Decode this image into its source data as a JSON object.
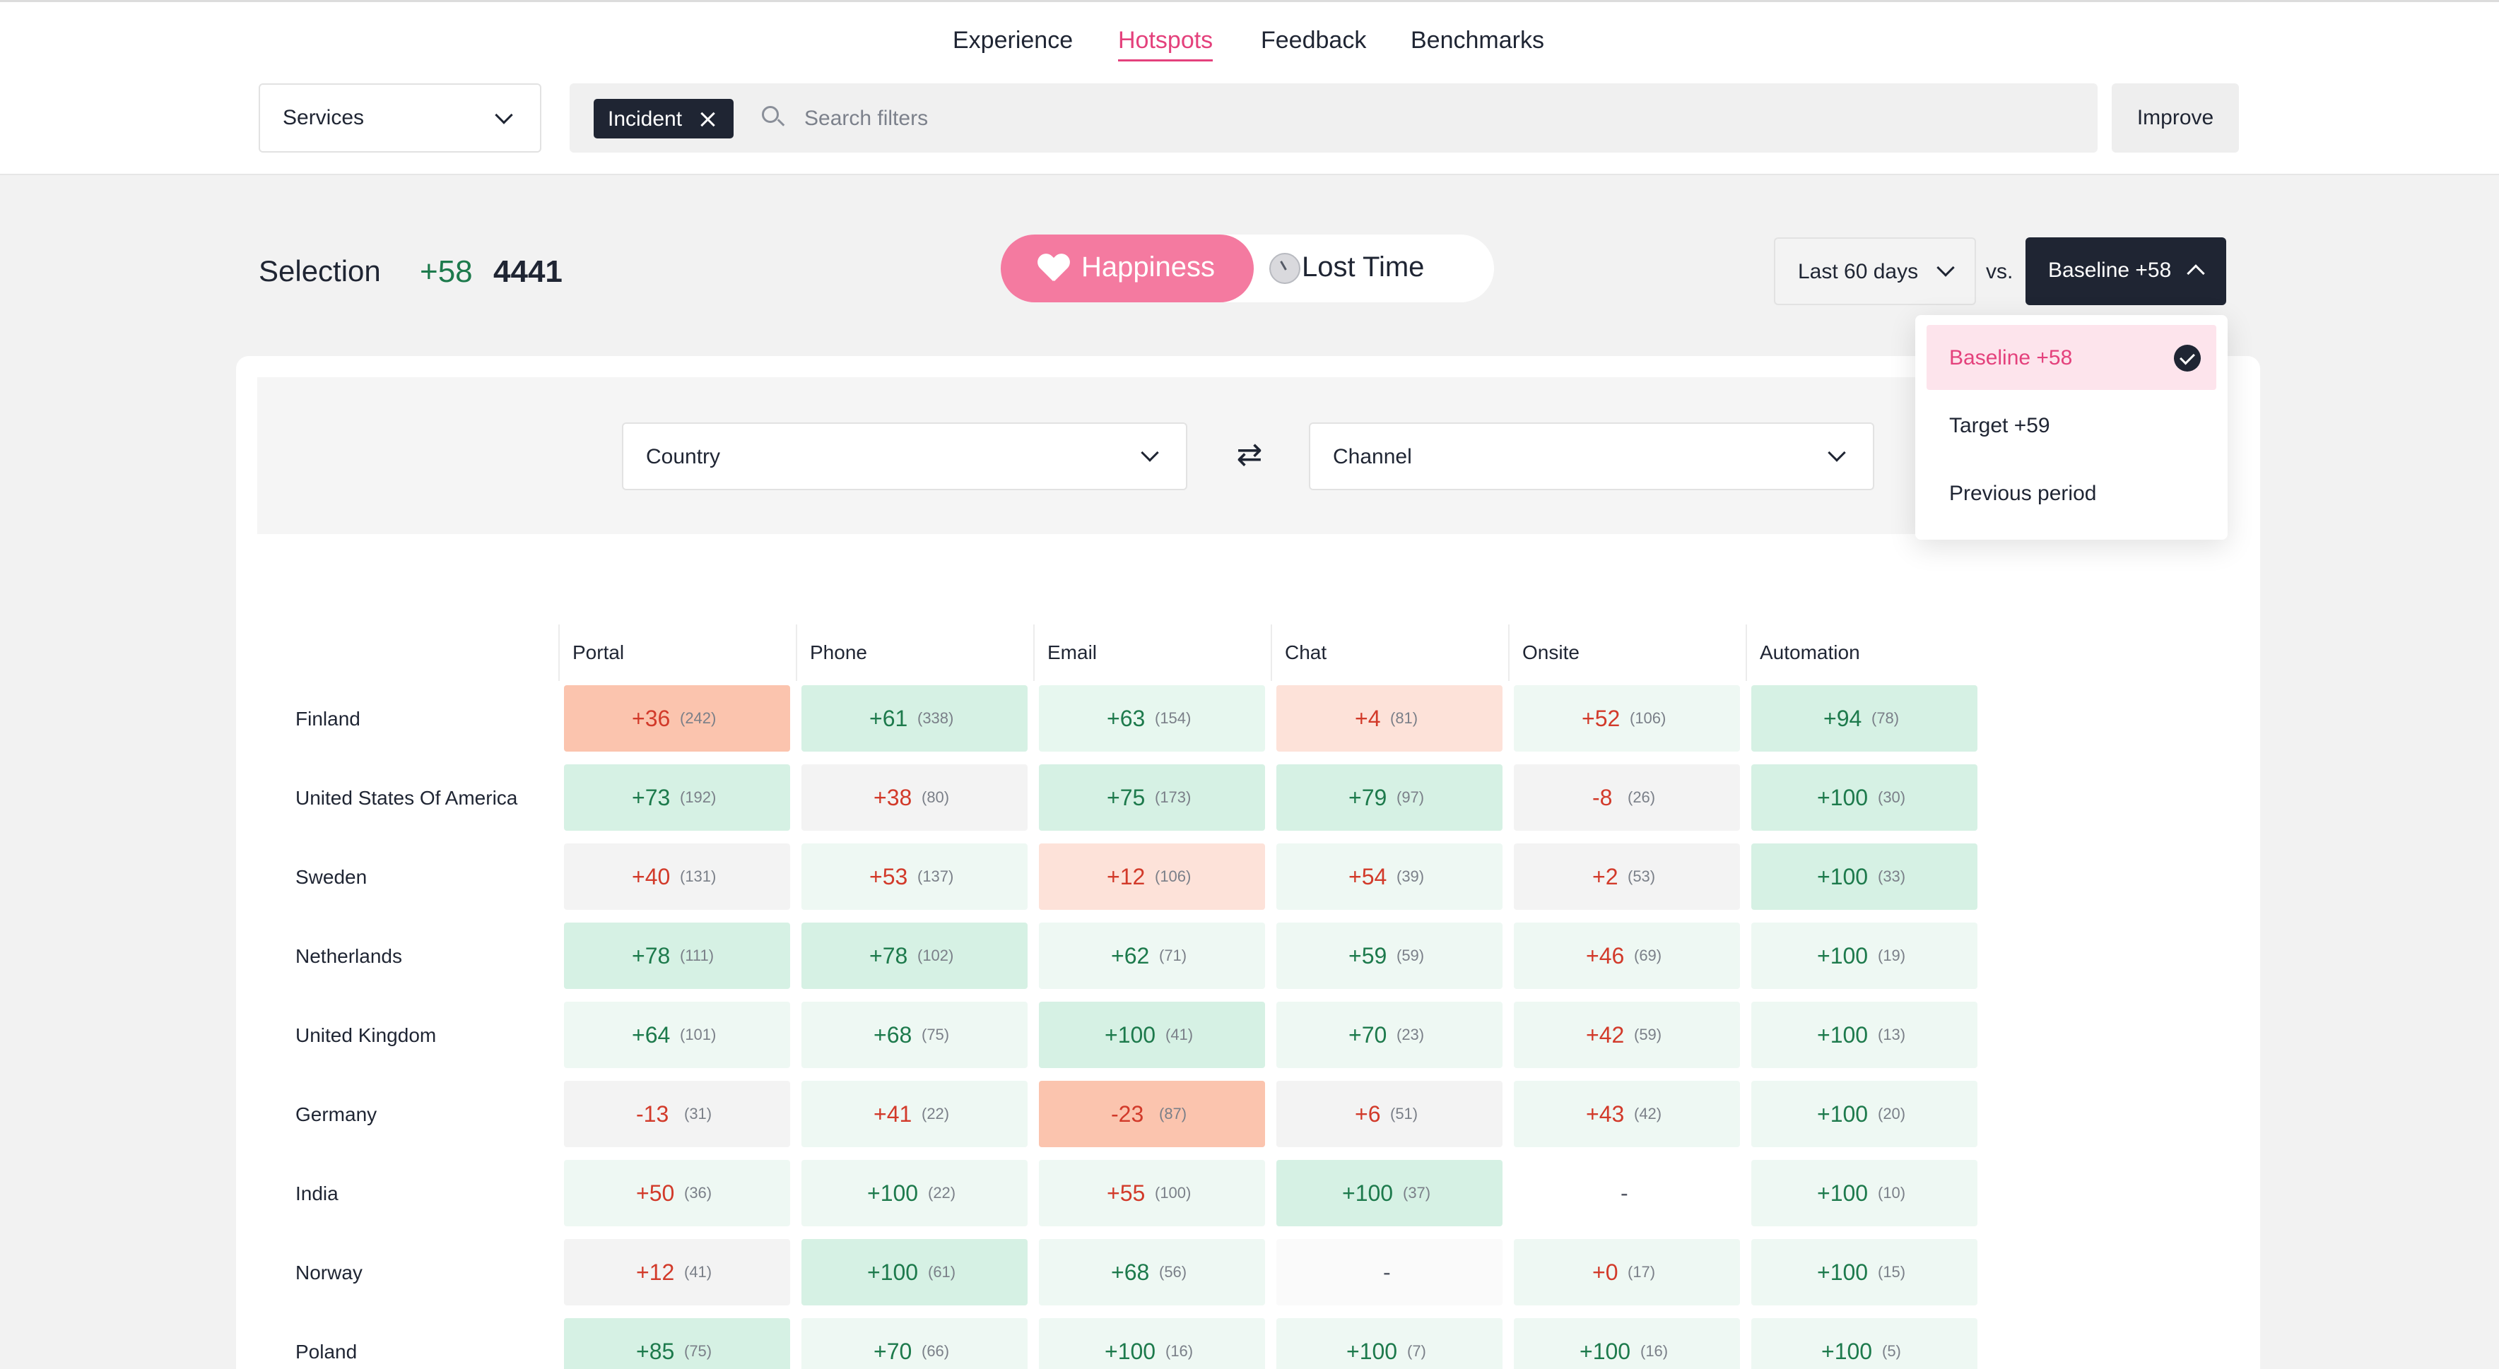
{
  "nav": {
    "items": [
      {
        "label": "Experience",
        "active": false
      },
      {
        "label": "Hotspots",
        "active": true
      },
      {
        "label": "Feedback",
        "active": false
      },
      {
        "label": "Benchmarks",
        "active": false
      }
    ]
  },
  "toolbar": {
    "service_select": "Services",
    "filter_chip": "Incident",
    "search_placeholder": "Search filters",
    "improve_label": "Improve"
  },
  "summary": {
    "label": "Selection",
    "delta": "+58",
    "count": "4441"
  },
  "metric_toggle": {
    "happiness_label": "Happiness",
    "lost_time_label": "Lost Time",
    "active": "Happiness"
  },
  "comparison": {
    "period": "Last 60 days",
    "vs_label": "vs.",
    "baseline": "Baseline +58",
    "options": [
      {
        "label": "Baseline +58",
        "selected": true
      },
      {
        "label": "Target +59",
        "selected": false
      },
      {
        "label": "Previous period",
        "selected": false
      }
    ]
  },
  "dimensions": {
    "rows_dim": "Country",
    "cols_dim": "Channel"
  },
  "colors": {
    "accent": "#e4417c",
    "toggle_active": "#f47aa0",
    "dark": "#1f2533",
    "positive_text": "#1d7a4c",
    "negative_text": "#d23a2a"
  },
  "table": {
    "columns": [
      "Portal",
      "Phone",
      "Email",
      "Chat",
      "Onsite",
      "Automation"
    ],
    "rows": [
      {
        "country": "Finland",
        "cells": [
          {
            "v": "+36",
            "n": "(242)",
            "c": "#fbc4ae",
            "t": "neg"
          },
          {
            "v": "+61",
            "n": "(338)",
            "c": "#d6f1e4",
            "t": "pos"
          },
          {
            "v": "+63",
            "n": "(154)",
            "c": "#e7f7ef",
            "t": "pos"
          },
          {
            "v": "+4",
            "n": "(81)",
            "c": "#fde2d9",
            "t": "neg"
          },
          {
            "v": "+52",
            "n": "(106)",
            "c": "#eef8f3",
            "t": "neg"
          },
          {
            "v": "+94",
            "n": "(78)",
            "c": "#d6f1e4",
            "t": "pos"
          }
        ]
      },
      {
        "country": "United States Of America",
        "cells": [
          {
            "v": "+73",
            "n": "(192)",
            "c": "#d6f1e4",
            "t": "pos"
          },
          {
            "v": "+38",
            "n": "(80)",
            "c": "#f3f3f3",
            "t": "neg"
          },
          {
            "v": "+75",
            "n": "(173)",
            "c": "#d6f1e4",
            "t": "pos"
          },
          {
            "v": "+79",
            "n": "(97)",
            "c": "#d6f1e4",
            "t": "pos"
          },
          {
            "v": "-8",
            "n": "(26)",
            "c": "#f3f3f3",
            "t": "neg"
          },
          {
            "v": "+100",
            "n": "(30)",
            "c": "#d6f1e4",
            "t": "pos"
          }
        ]
      },
      {
        "country": "Sweden",
        "cells": [
          {
            "v": "+40",
            "n": "(131)",
            "c": "#f3f3f3",
            "t": "neg"
          },
          {
            "v": "+53",
            "n": "(137)",
            "c": "#eef8f3",
            "t": "neg"
          },
          {
            "v": "+12",
            "n": "(106)",
            "c": "#fde2d9",
            "t": "neg"
          },
          {
            "v": "+54",
            "n": "(39)",
            "c": "#eef8f3",
            "t": "neg"
          },
          {
            "v": "+2",
            "n": "(53)",
            "c": "#f3f3f3",
            "t": "neg"
          },
          {
            "v": "+100",
            "n": "(33)",
            "c": "#d6f1e4",
            "t": "pos"
          }
        ]
      },
      {
        "country": "Netherlands",
        "cells": [
          {
            "v": "+78",
            "n": "(111)",
            "c": "#d6f1e4",
            "t": "pos"
          },
          {
            "v": "+78",
            "n": "(102)",
            "c": "#d6f1e4",
            "t": "pos"
          },
          {
            "v": "+62",
            "n": "(71)",
            "c": "#eef8f3",
            "t": "pos"
          },
          {
            "v": "+59",
            "n": "(59)",
            "c": "#eef8f3",
            "t": "pos"
          },
          {
            "v": "+46",
            "n": "(69)",
            "c": "#eef8f3",
            "t": "neg"
          },
          {
            "v": "+100",
            "n": "(19)",
            "c": "#eef8f3",
            "t": "pos"
          }
        ]
      },
      {
        "country": "United Kingdom",
        "cells": [
          {
            "v": "+64",
            "n": "(101)",
            "c": "#eef8f3",
            "t": "pos"
          },
          {
            "v": "+68",
            "n": "(75)",
            "c": "#eef8f3",
            "t": "pos"
          },
          {
            "v": "+100",
            "n": "(41)",
            "c": "#d6f1e4",
            "t": "pos"
          },
          {
            "v": "+70",
            "n": "(23)",
            "c": "#eef8f3",
            "t": "pos"
          },
          {
            "v": "+42",
            "n": "(59)",
            "c": "#eef8f3",
            "t": "neg"
          },
          {
            "v": "+100",
            "n": "(13)",
            "c": "#eef8f3",
            "t": "pos"
          }
        ]
      },
      {
        "country": "Germany",
        "cells": [
          {
            "v": "-13",
            "n": "(31)",
            "c": "#f3f3f3",
            "t": "neg"
          },
          {
            "v": "+41",
            "n": "(22)",
            "c": "#eef8f3",
            "t": "neg"
          },
          {
            "v": "-23",
            "n": "(87)",
            "c": "#fbc4ae",
            "t": "neg"
          },
          {
            "v": "+6",
            "n": "(51)",
            "c": "#f3f3f3",
            "t": "neg"
          },
          {
            "v": "+43",
            "n": "(42)",
            "c": "#eef8f3",
            "t": "neg"
          },
          {
            "v": "+100",
            "n": "(20)",
            "c": "#eef8f3",
            "t": "pos"
          }
        ]
      },
      {
        "country": "India",
        "cells": [
          {
            "v": "+50",
            "n": "(36)",
            "c": "#eef8f3",
            "t": "neg"
          },
          {
            "v": "+100",
            "n": "(22)",
            "c": "#eef8f3",
            "t": "pos"
          },
          {
            "v": "+55",
            "n": "(100)",
            "c": "#eef8f3",
            "t": "neg"
          },
          {
            "v": "+100",
            "n": "(37)",
            "c": "#d6f1e4",
            "t": "pos"
          },
          {
            "v": "-",
            "n": "",
            "c": "#ffffff",
            "t": "dash"
          },
          {
            "v": "+100",
            "n": "(10)",
            "c": "#eef8f3",
            "t": "pos"
          }
        ]
      },
      {
        "country": "Norway",
        "cells": [
          {
            "v": "+12",
            "n": "(41)",
            "c": "#f3f3f3",
            "t": "neg"
          },
          {
            "v": "+100",
            "n": "(61)",
            "c": "#d6f1e4",
            "t": "pos"
          },
          {
            "v": "+68",
            "n": "(56)",
            "c": "#eef8f3",
            "t": "pos"
          },
          {
            "v": "-",
            "n": "",
            "c": "#fafafa",
            "t": "dash"
          },
          {
            "v": "+0",
            "n": "(17)",
            "c": "#eef8f3",
            "t": "neg"
          },
          {
            "v": "+100",
            "n": "(15)",
            "c": "#eef8f3",
            "t": "pos"
          }
        ]
      },
      {
        "country": "Poland",
        "cells": [
          {
            "v": "+85",
            "n": "(75)",
            "c": "#d6f1e4",
            "t": "pos"
          },
          {
            "v": "+70",
            "n": "(66)",
            "c": "#eef8f3",
            "t": "pos"
          },
          {
            "v": "+100",
            "n": "(16)",
            "c": "#eef8f3",
            "t": "pos"
          },
          {
            "v": "+100",
            "n": "(7)",
            "c": "#eef8f3",
            "t": "pos"
          },
          {
            "v": "+100",
            "n": "(16)",
            "c": "#eef8f3",
            "t": "pos"
          },
          {
            "v": "+100",
            "n": "(5)",
            "c": "#eef8f3",
            "t": "pos"
          }
        ]
      }
    ]
  }
}
